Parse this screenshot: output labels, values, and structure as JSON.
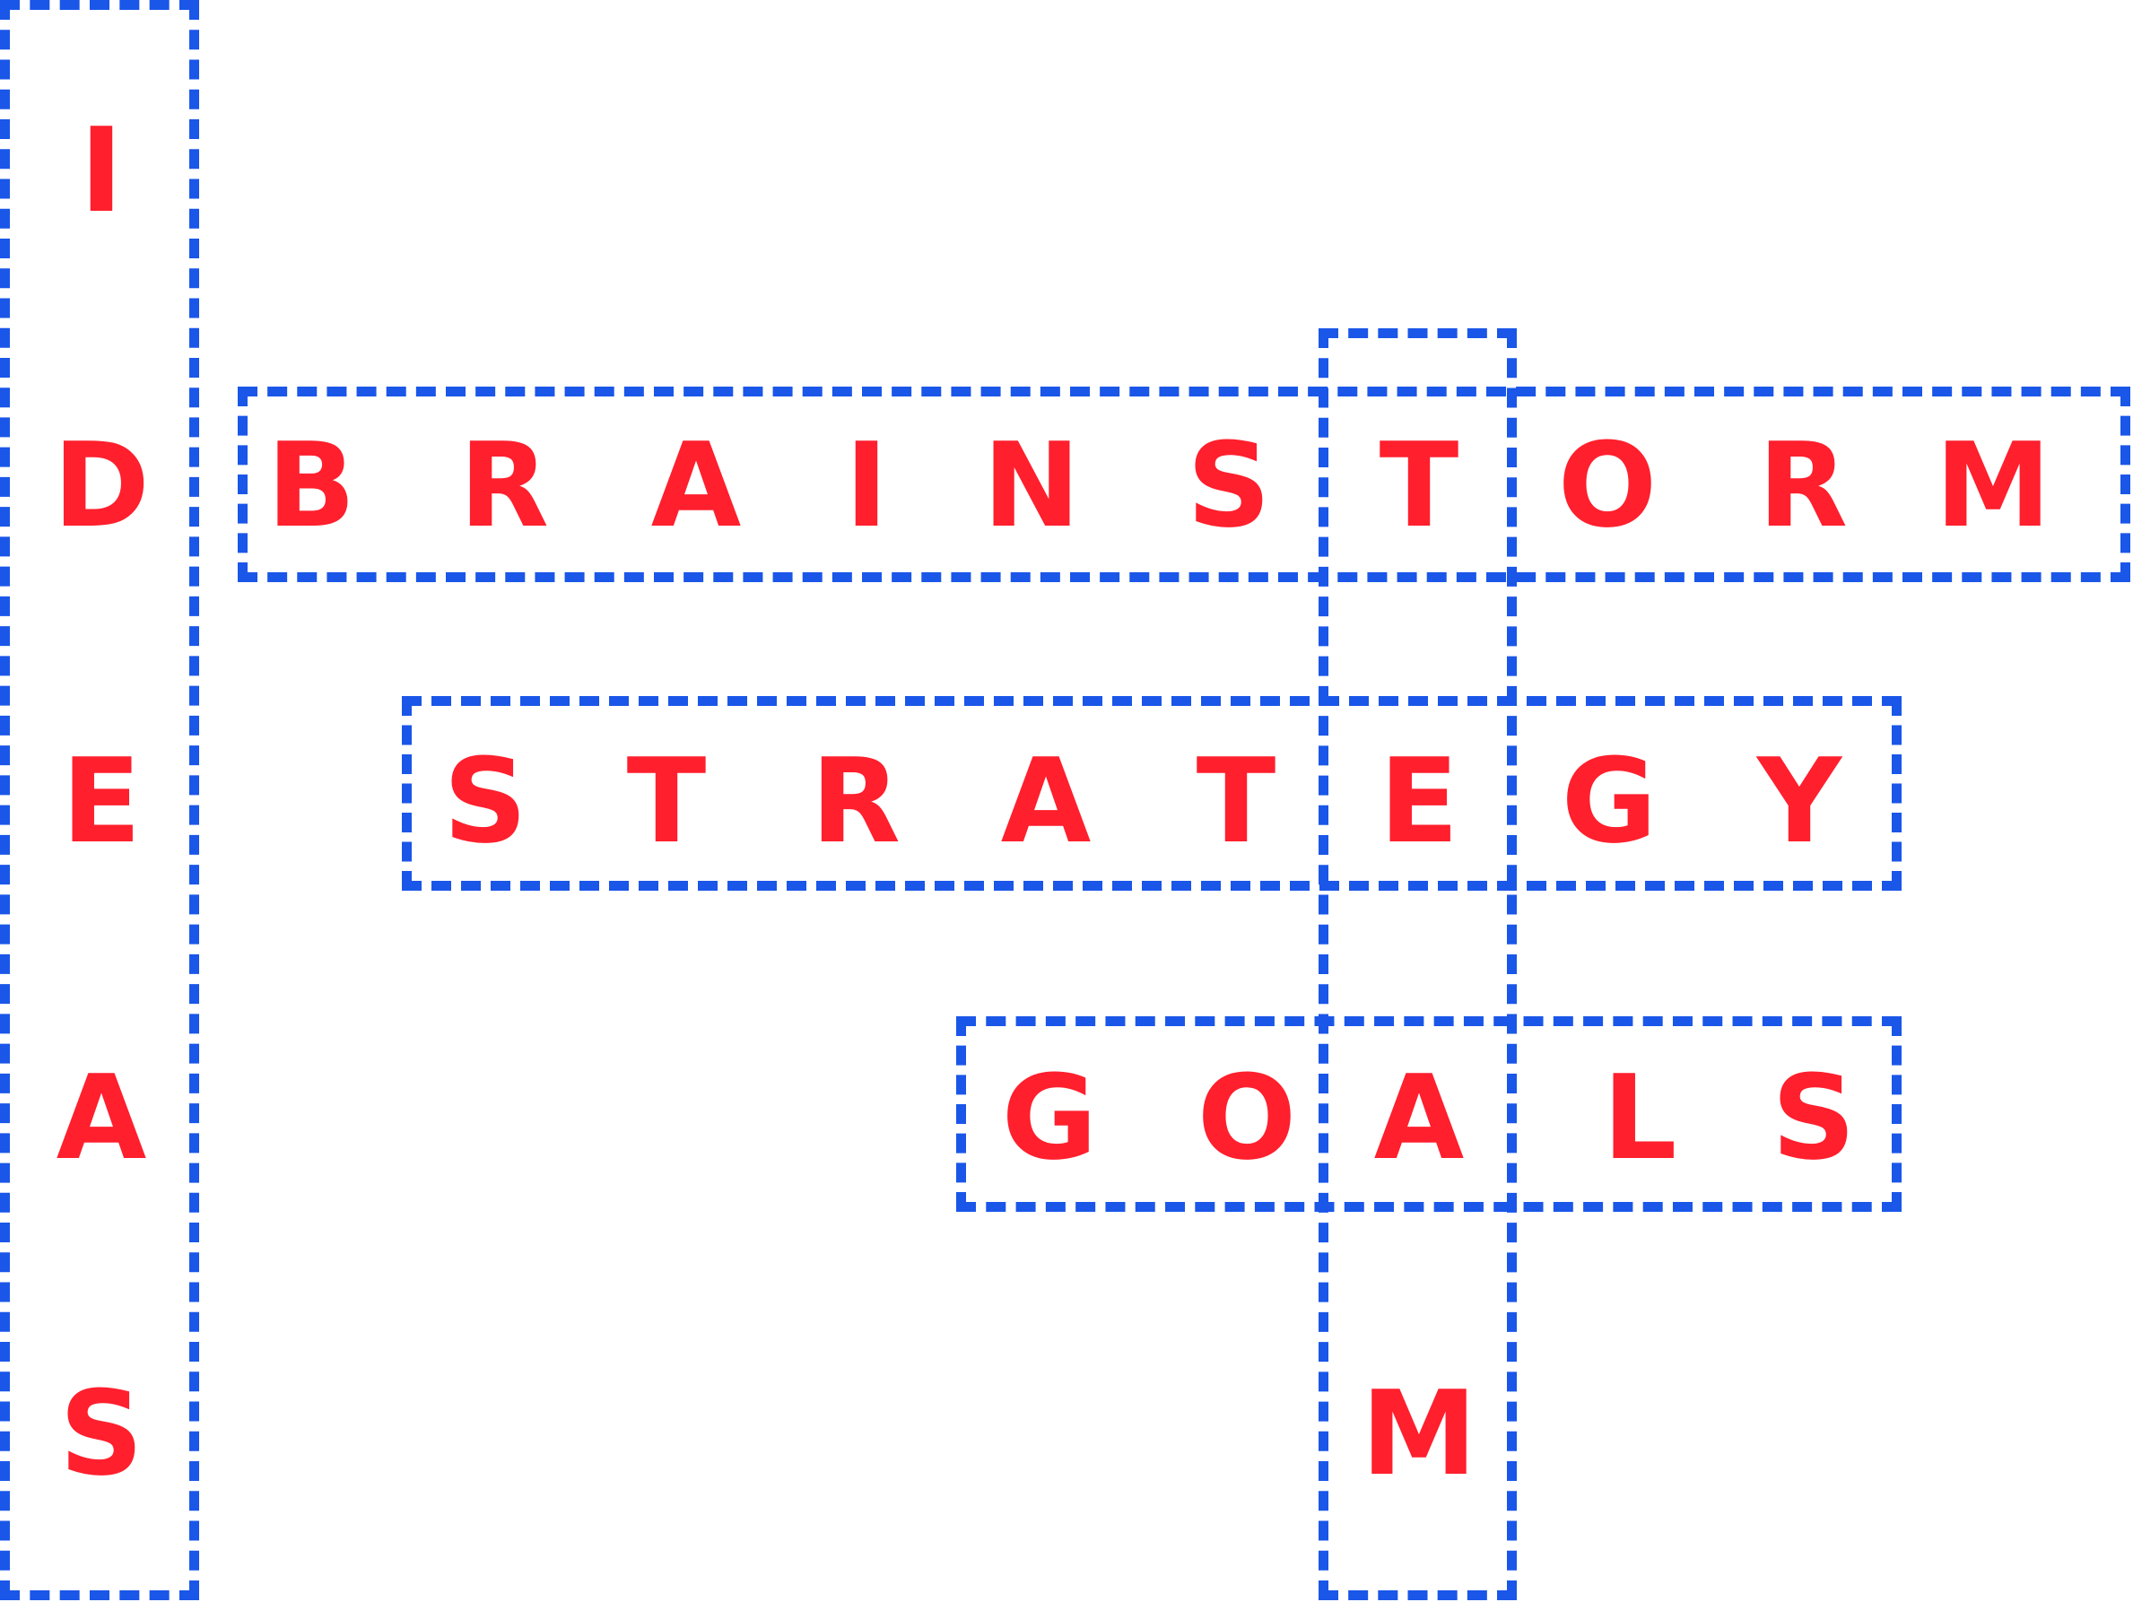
{
  "puzzle": {
    "colors": {
      "letter": "#ff1f2d",
      "box_border": "#1a56e8",
      "background": "#ffffff"
    },
    "words": [
      {
        "id": "ideas",
        "direction": "down",
        "text": "IDEAS"
      },
      {
        "id": "brainstorm",
        "direction": "across",
        "text": "BRAINSTORM"
      },
      {
        "id": "team",
        "direction": "down",
        "text": "TEAM"
      },
      {
        "id": "strategy",
        "direction": "across",
        "text": "STRATEGY"
      },
      {
        "id": "goals",
        "direction": "across",
        "text": "GOALS"
      }
    ]
  }
}
